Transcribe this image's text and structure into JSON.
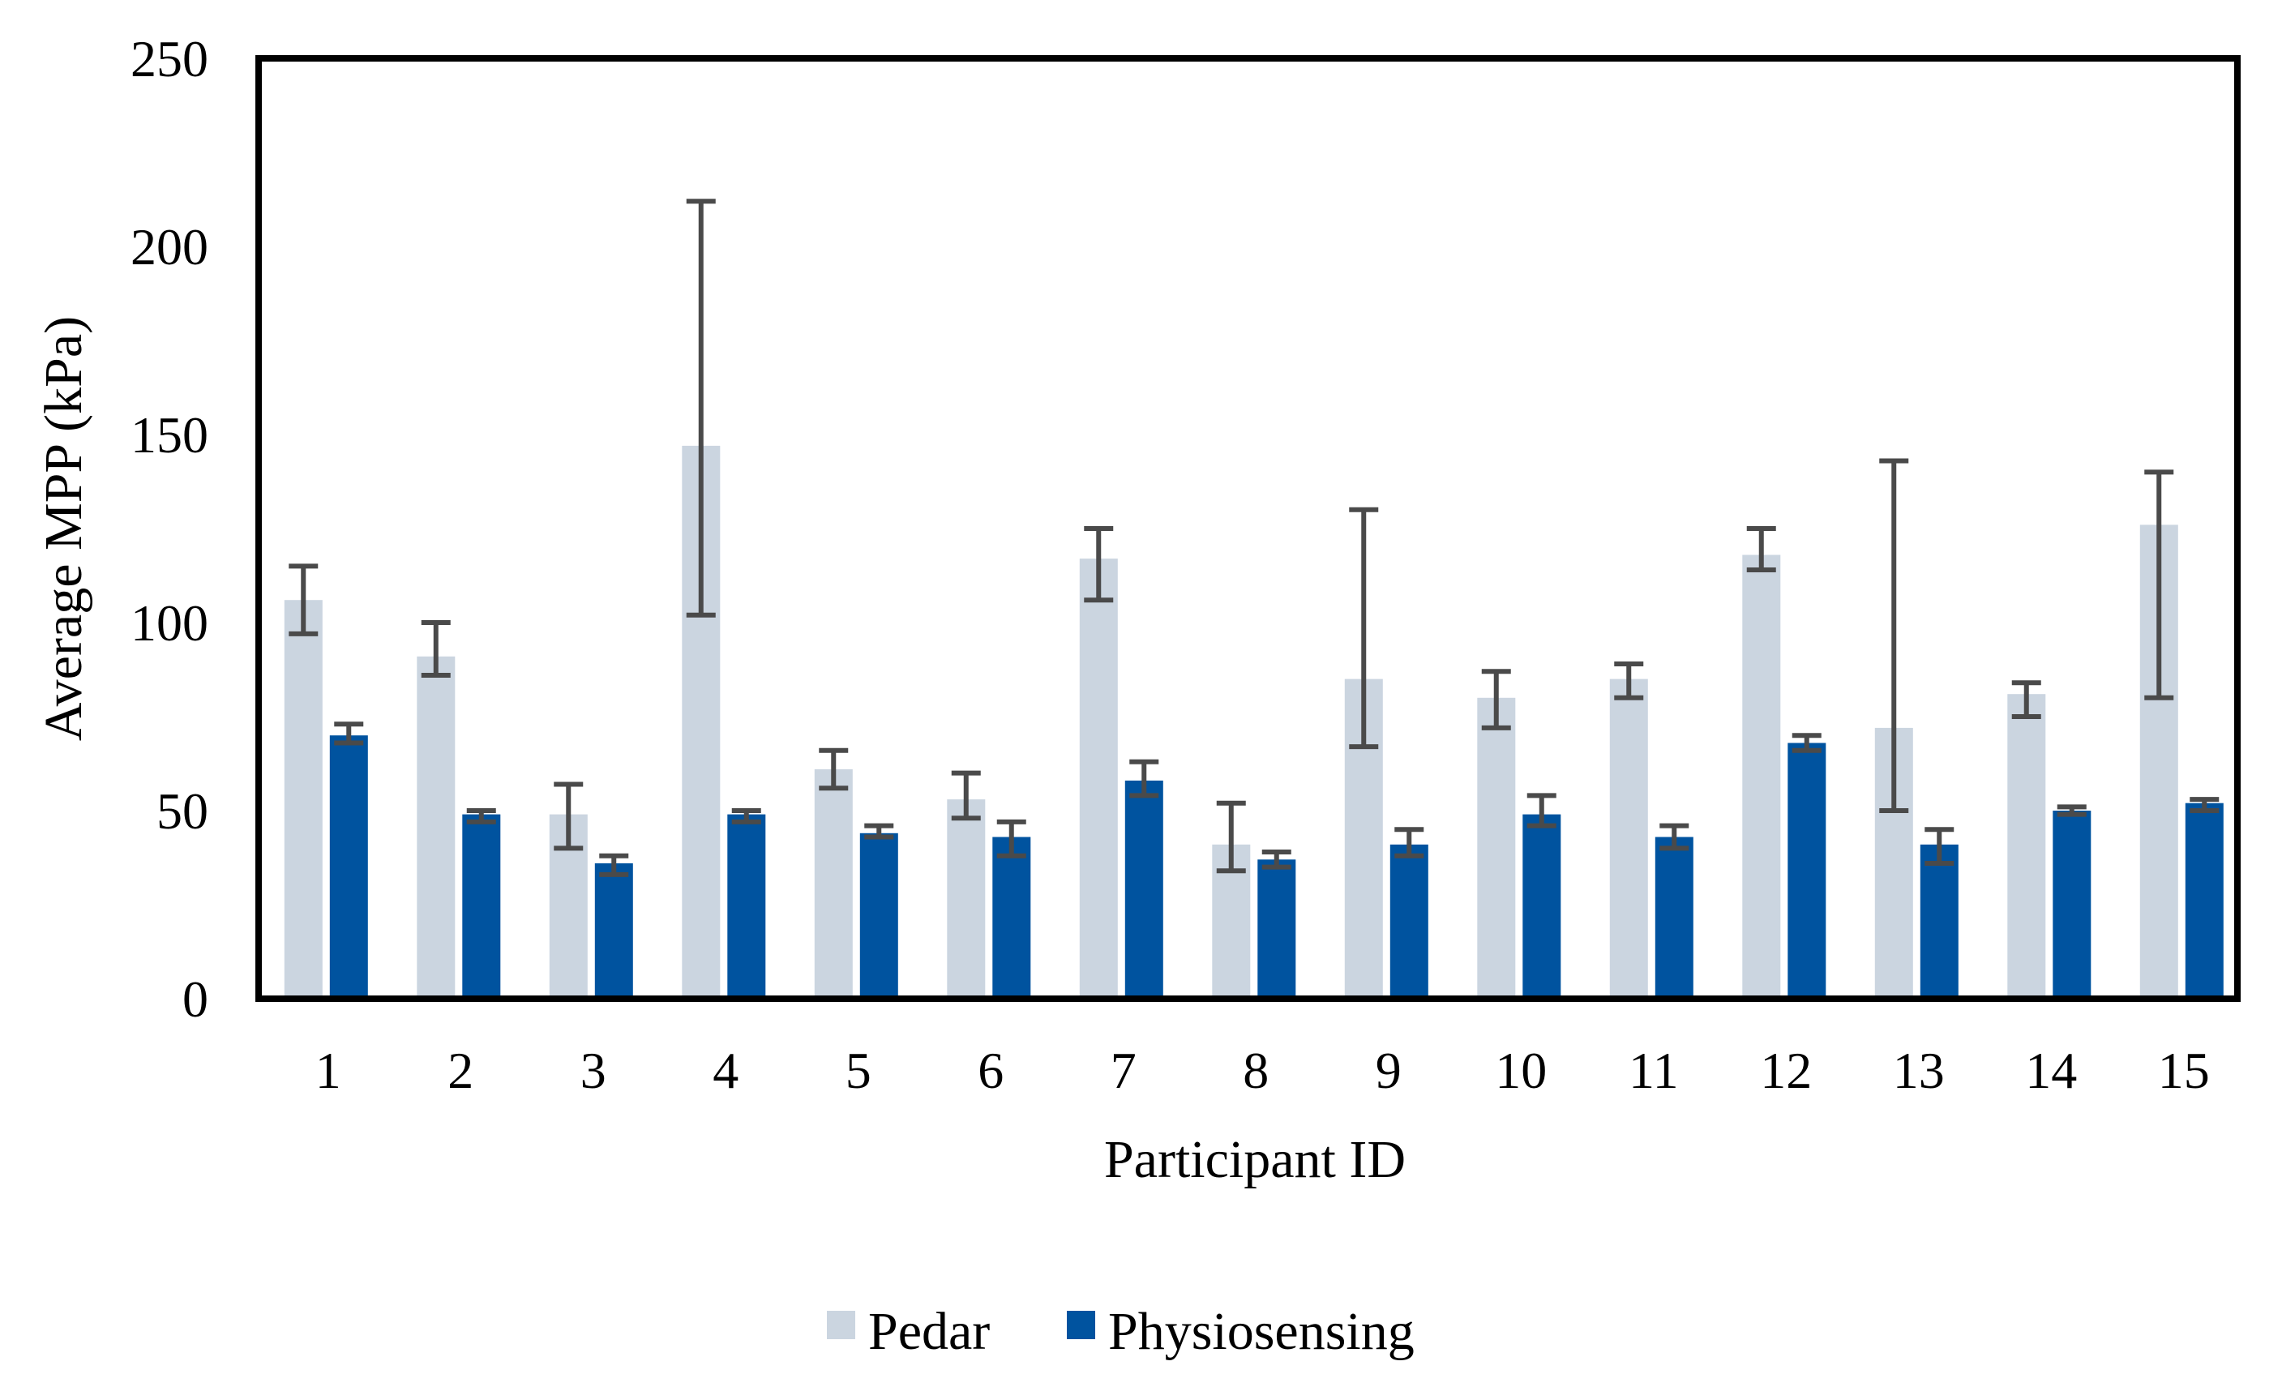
{
  "chart_data": {
    "type": "bar",
    "title": "",
    "xlabel": "Participant ID",
    "ylabel": "Average MPP (kPa)",
    "ylim": [
      0,
      250
    ],
    "yticks": [
      0,
      50,
      100,
      150,
      200,
      250
    ],
    "grid": false,
    "legend_position": "bottom-center",
    "categories": [
      "1",
      "2",
      "3",
      "4",
      "5",
      "6",
      "7",
      "8",
      "9",
      "10",
      "11",
      "12",
      "13",
      "14",
      "15"
    ],
    "series": [
      {
        "name": "Pedar",
        "color": "#cbd5e0",
        "values": [
          106,
          91,
          49,
          147,
          61,
          53,
          117,
          41,
          85,
          80,
          85,
          118,
          72,
          81,
          126
        ],
        "error_low": [
          97,
          86,
          40,
          102,
          56,
          48,
          106,
          34,
          67,
          72,
          80,
          114,
          50,
          75,
          80
        ],
        "error_high": [
          115,
          100,
          57,
          212,
          66,
          60,
          125,
          52,
          130,
          87,
          89,
          125,
          143,
          84,
          140
        ]
      },
      {
        "name": "Physiosensing",
        "color": "#00539f",
        "values": [
          70,
          49,
          36,
          49,
          44,
          43,
          58,
          37,
          41,
          49,
          43,
          68,
          41,
          50,
          52
        ],
        "error_low": [
          68,
          47,
          33,
          47,
          43,
          38,
          54,
          35,
          38,
          46,
          40,
          66,
          36,
          49,
          50
        ],
        "error_high": [
          73,
          50,
          38,
          50,
          46,
          47,
          63,
          39,
          45,
          54,
          46,
          70,
          45,
          51,
          53
        ]
      }
    ],
    "error_bar_color": "#4a4a4a"
  }
}
